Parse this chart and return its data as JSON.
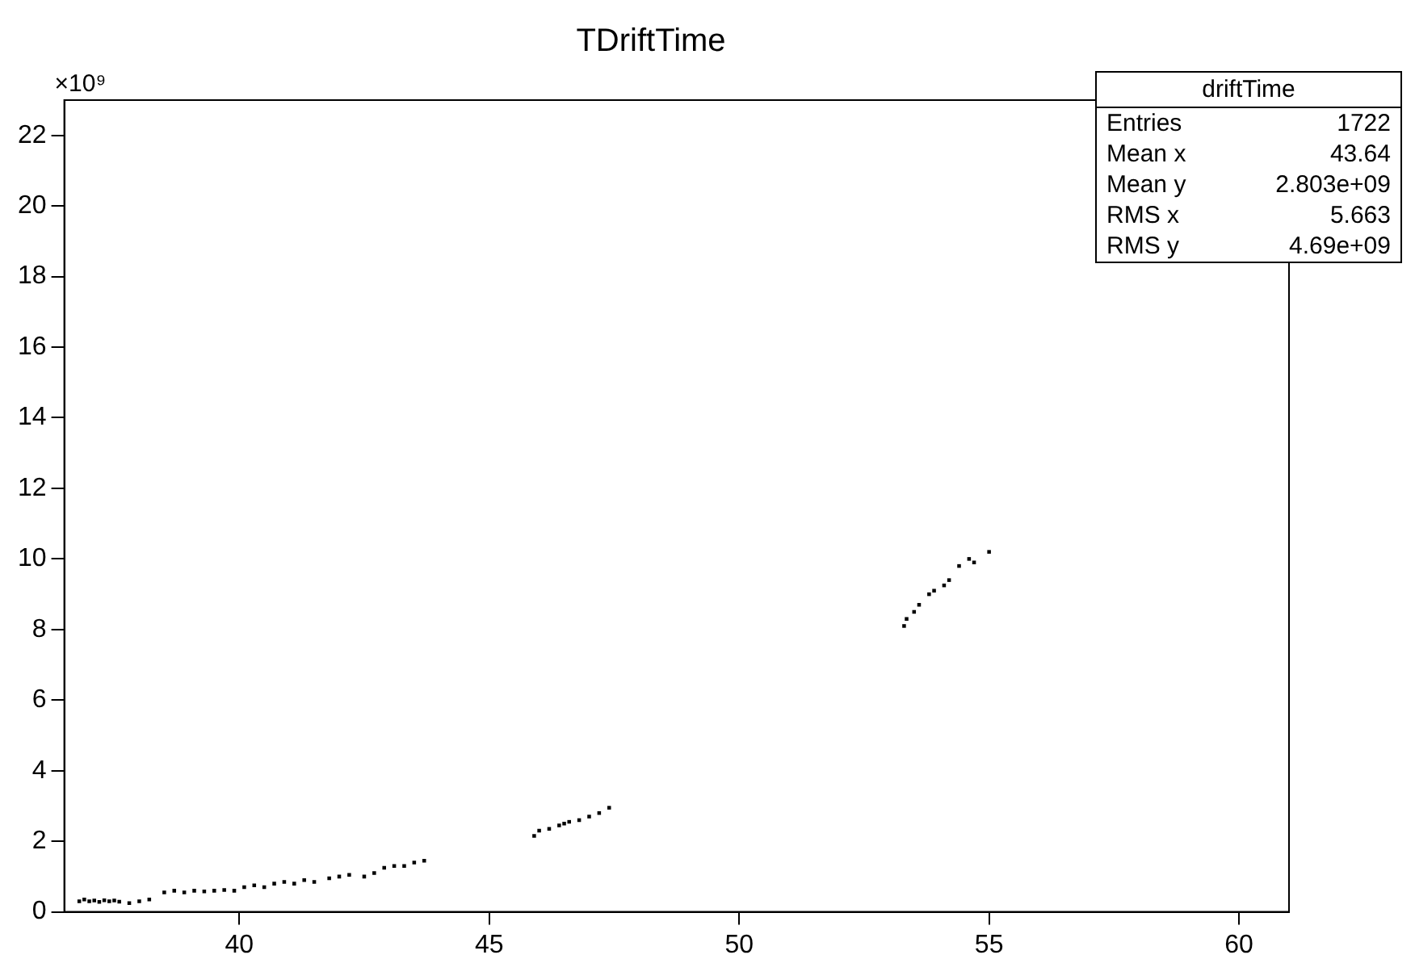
{
  "chart_data": {
    "type": "scatter",
    "title": "TDriftTime",
    "marker": "square",
    "legend": false,
    "grid": false,
    "xlim": [
      36.5,
      61
    ],
    "xticks": [
      40,
      45,
      50,
      55,
      60
    ],
    "ylim": [
      0,
      23
    ],
    "yticks": [
      0,
      2,
      4,
      6,
      8,
      10,
      12,
      14,
      16,
      18,
      20,
      22
    ],
    "annotations": [
      "×10⁹",
      "driftTime",
      "Entries",
      "1722",
      "Mean x",
      "43.64",
      "Mean y",
      "2.803e+09",
      "RMS x",
      "5.663",
      "RMS y",
      "4.69e+09"
    ],
    "series": [
      {
        "color": "#000000",
        "x": [
          36.8,
          36.9,
          37.0,
          37.1,
          37.2,
          37.3,
          37.4,
          37.5,
          37.6,
          37.8,
          38.0,
          38.2,
          38.5,
          38.7,
          38.9,
          39.1,
          39.3,
          39.5,
          39.7,
          39.9,
          40.1,
          40.3,
          40.5,
          40.7,
          40.9,
          41.1,
          41.3,
          41.5,
          41.8,
          42.0,
          42.2,
          42.5,
          42.7,
          42.9,
          43.1,
          43.3,
          43.5,
          43.7,
          45.9,
          46.0,
          46.2,
          46.4,
          46.5,
          46.6,
          46.8,
          47.0,
          47.2,
          47.4,
          53.3,
          53.35,
          53.5,
          53.6,
          53.8,
          53.9,
          54.1,
          54.2,
          54.4,
          54.6,
          54.7,
          55.0
        ],
        "values": [
          0.3,
          0.35,
          0.3,
          0.32,
          0.28,
          0.33,
          0.3,
          0.32,
          0.29,
          0.25,
          0.3,
          0.35,
          0.55,
          0.6,
          0.55,
          0.6,
          0.58,
          0.6,
          0.62,
          0.6,
          0.7,
          0.75,
          0.7,
          0.8,
          0.85,
          0.8,
          0.9,
          0.85,
          0.95,
          1.0,
          1.05,
          1.0,
          1.1,
          1.25,
          1.3,
          1.3,
          1.4,
          1.45,
          2.15,
          2.3,
          2.35,
          2.45,
          2.5,
          2.55,
          2.6,
          2.7,
          2.8,
          2.95,
          8.1,
          8.3,
          8.5,
          8.7,
          9.0,
          9.1,
          9.25,
          9.4,
          9.8,
          10.0,
          9.9,
          10.2
        ]
      }
    ]
  }
}
